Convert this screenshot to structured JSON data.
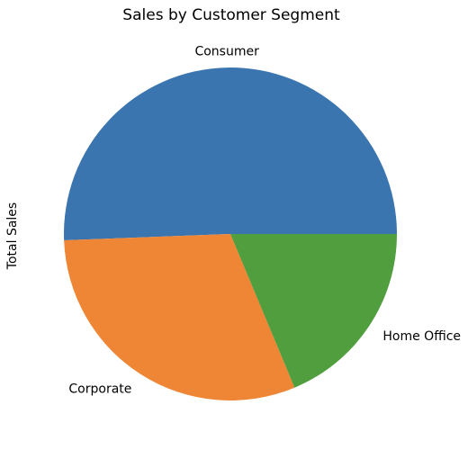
{
  "chart_data": {
    "type": "pie",
    "title": "Sales by Customer Segment",
    "ylabel": "Total Sales",
    "categories": [
      "Consumer",
      "Corporate",
      "Home Office"
    ],
    "values": [
      50.6,
      30.7,
      18.7
    ],
    "colors": [
      "#3a75af",
      "#ef8636",
      "#519e3e"
    ],
    "start_angle_deg": 0,
    "direction": "counterclockwise"
  }
}
